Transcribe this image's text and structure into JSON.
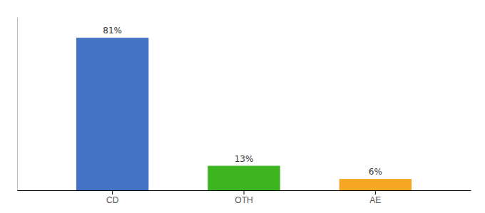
{
  "chart_data": {
    "type": "bar",
    "categories": [
      "CD",
      "OTH",
      "AE"
    ],
    "values": [
      81,
      13,
      6
    ],
    "value_labels": [
      "81%",
      "13%",
      "6%"
    ],
    "data_labels": true,
    "colors": [
      "#4472c4",
      "#3cb520",
      "#f5a623"
    ],
    "ylim": [
      0,
      92
    ],
    "tick_labels": "x"
  }
}
